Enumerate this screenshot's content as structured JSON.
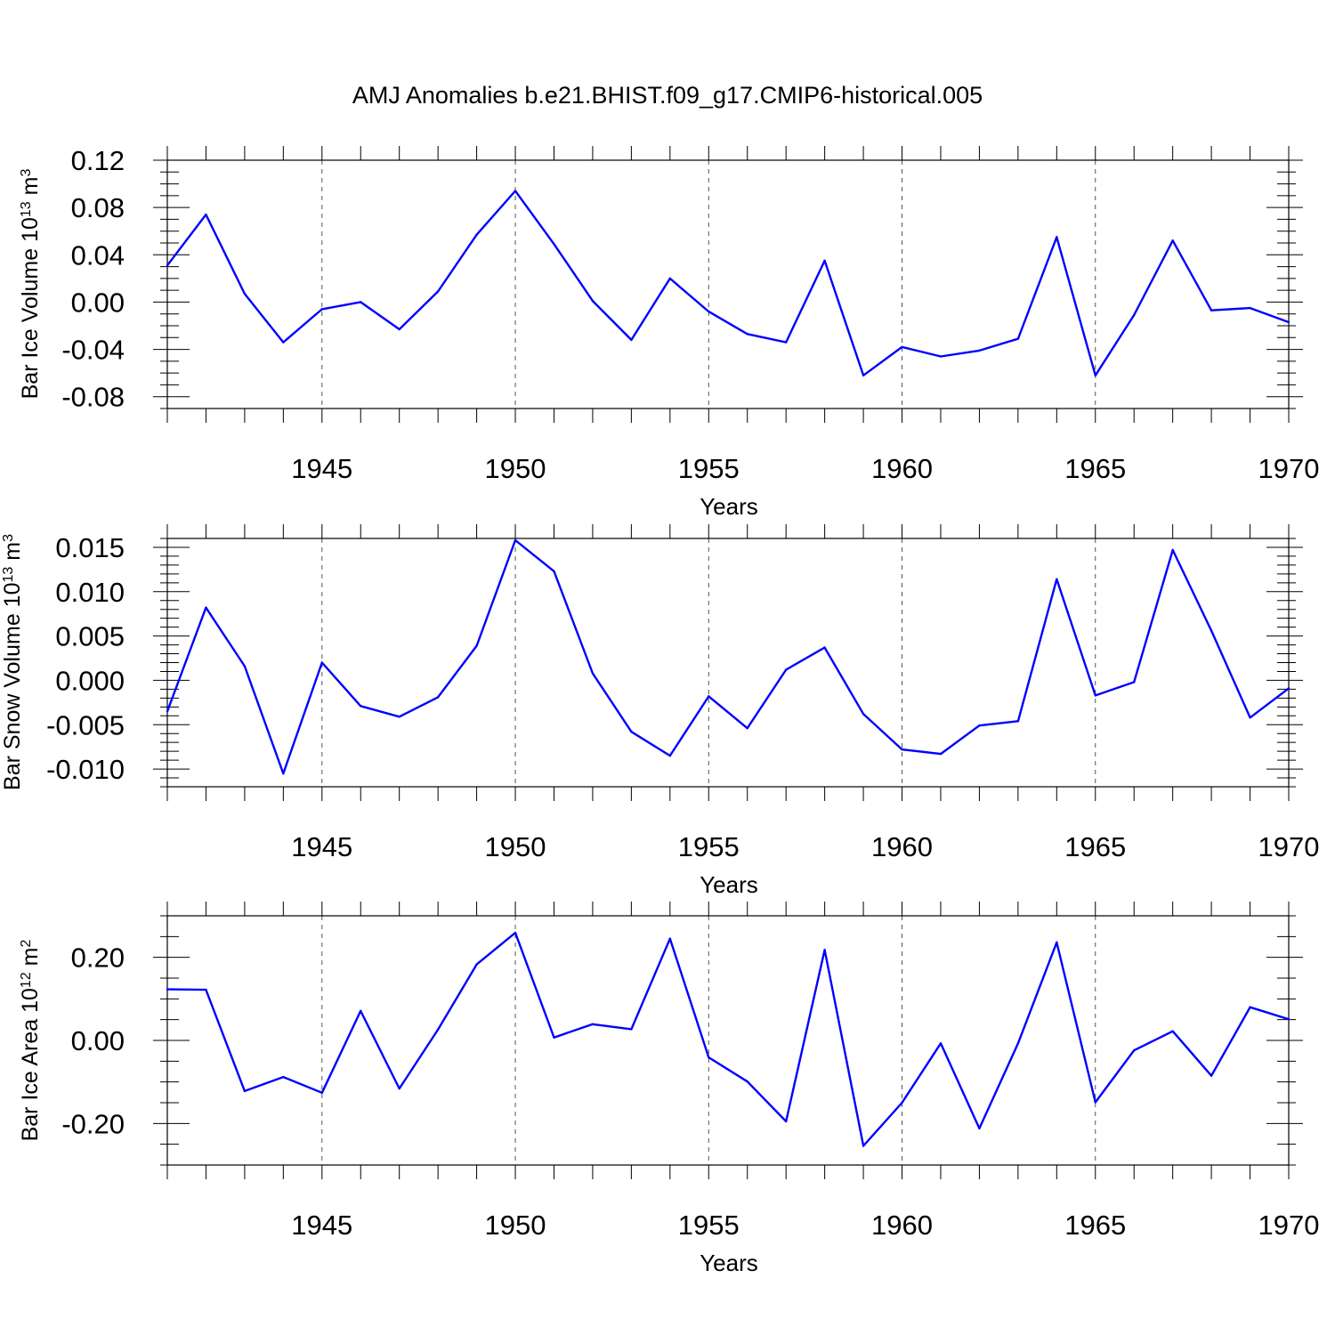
{
  "title": "AMJ Anomalies b.e21.BHIST.f09_g17.CMIP6-historical.005",
  "chart_data": [
    {
      "type": "line",
      "ylabel": "Bar Ice Volume",
      "ylabel_scale": "10",
      "ylabel_exp": "13",
      "ylabel_unit": "m",
      "ylabel_unit_exp": "3",
      "xlabel": "Years",
      "xlim": [
        1941,
        1970
      ],
      "ylim": [
        -0.09,
        0.12
      ],
      "yticks": [
        -0.08,
        -0.04,
        0.0,
        0.04,
        0.08,
        0.12
      ],
      "ytick_labels": [
        "-0.08",
        "-0.04",
        "0.00",
        "0.04",
        "0.08",
        "0.12"
      ],
      "ytick_minor": 0.01,
      "xticks": [
        1945,
        1950,
        1955,
        1960,
        1965,
        1970
      ],
      "xtick_labels": [
        "1945",
        "1950",
        "1955",
        "1960",
        "1965",
        "1970"
      ],
      "x": [
        1941,
        1942,
        1943,
        1944,
        1945,
        1946,
        1947,
        1948,
        1949,
        1950,
        1951,
        1952,
        1953,
        1954,
        1955,
        1956,
        1957,
        1958,
        1959,
        1960,
        1961,
        1962,
        1963,
        1964,
        1965,
        1966,
        1967,
        1968,
        1969,
        1970
      ],
      "values": [
        0.031,
        0.074,
        0.007,
        -0.034,
        -0.006,
        0.0,
        -0.023,
        0.009,
        0.057,
        0.094,
        0.049,
        0.001,
        -0.032,
        0.02,
        -0.008,
        -0.027,
        -0.034,
        0.035,
        -0.062,
        -0.038,
        -0.046,
        -0.041,
        -0.031,
        0.055,
        -0.062,
        -0.011,
        0.052,
        -0.007,
        -0.005,
        -0.017
      ]
    },
    {
      "type": "line",
      "ylabel": "Bar Snow Volume",
      "ylabel_scale": "10",
      "ylabel_exp": "13",
      "ylabel_unit": "m",
      "ylabel_unit_exp": "3",
      "xlabel": "Years",
      "xlim": [
        1941,
        1970
      ],
      "ylim": [
        -0.012,
        0.016
      ],
      "yticks": [
        -0.01,
        -0.005,
        0.0,
        0.005,
        0.01,
        0.015
      ],
      "ytick_labels": [
        "-0.010",
        "-0.005",
        "0.000",
        "0.005",
        "0.010",
        "0.015"
      ],
      "ytick_minor": 0.001,
      "xticks": [
        1945,
        1950,
        1955,
        1960,
        1965,
        1970
      ],
      "xtick_labels": [
        "1945",
        "1950",
        "1955",
        "1960",
        "1965",
        "1970"
      ],
      "x": [
        1941,
        1942,
        1943,
        1944,
        1945,
        1946,
        1947,
        1948,
        1949,
        1950,
        1951,
        1952,
        1953,
        1954,
        1955,
        1956,
        1957,
        1958,
        1959,
        1960,
        1961,
        1962,
        1963,
        1964,
        1965,
        1966,
        1967,
        1968,
        1969,
        1970
      ],
      "values": [
        -0.0035,
        0.0082,
        0.0016,
        -0.0105,
        0.002,
        -0.0029,
        -0.0041,
        -0.0019,
        0.0039,
        0.0158,
        0.0123,
        0.0008,
        -0.0058,
        -0.0085,
        -0.0018,
        -0.0054,
        0.0012,
        0.0037,
        -0.0038,
        -0.0078,
        -0.0083,
        -0.0051,
        -0.0046,
        0.0114,
        -0.0017,
        -0.0002,
        0.0147,
        0.0056,
        -0.0042,
        -0.0009
      ]
    },
    {
      "type": "line",
      "ylabel": "Bar Ice Area",
      "ylabel_scale": "10",
      "ylabel_exp": "12",
      "ylabel_unit": "m",
      "ylabel_unit_exp": "2",
      "xlabel": "Years",
      "xlim": [
        1941,
        1970
      ],
      "ylim": [
        -0.3,
        0.3
      ],
      "yticks": [
        -0.2,
        0.0,
        0.2
      ],
      "ytick_labels": [
        "-0.20",
        "0.00",
        "0.20"
      ],
      "ytick_minor": 0.05,
      "xticks": [
        1945,
        1950,
        1955,
        1960,
        1965,
        1970
      ],
      "xtick_labels": [
        "1945",
        "1950",
        "1955",
        "1960",
        "1965",
        "1970"
      ],
      "x": [
        1941,
        1942,
        1943,
        1944,
        1945,
        1946,
        1947,
        1948,
        1949,
        1950,
        1951,
        1952,
        1953,
        1954,
        1955,
        1956,
        1957,
        1958,
        1959,
        1960,
        1961,
        1962,
        1963,
        1964,
        1965,
        1966,
        1967,
        1968,
        1969,
        1970
      ],
      "values": [
        0.123,
        0.122,
        -0.122,
        -0.088,
        -0.126,
        0.071,
        -0.116,
        0.026,
        0.183,
        0.259,
        0.007,
        0.039,
        0.027,
        0.245,
        -0.041,
        -0.099,
        -0.195,
        0.218,
        -0.254,
        -0.15,
        -0.007,
        -0.212,
        -0.007,
        0.236,
        -0.149,
        -0.024,
        0.022,
        -0.085,
        0.08,
        0.051
      ]
    }
  ]
}
